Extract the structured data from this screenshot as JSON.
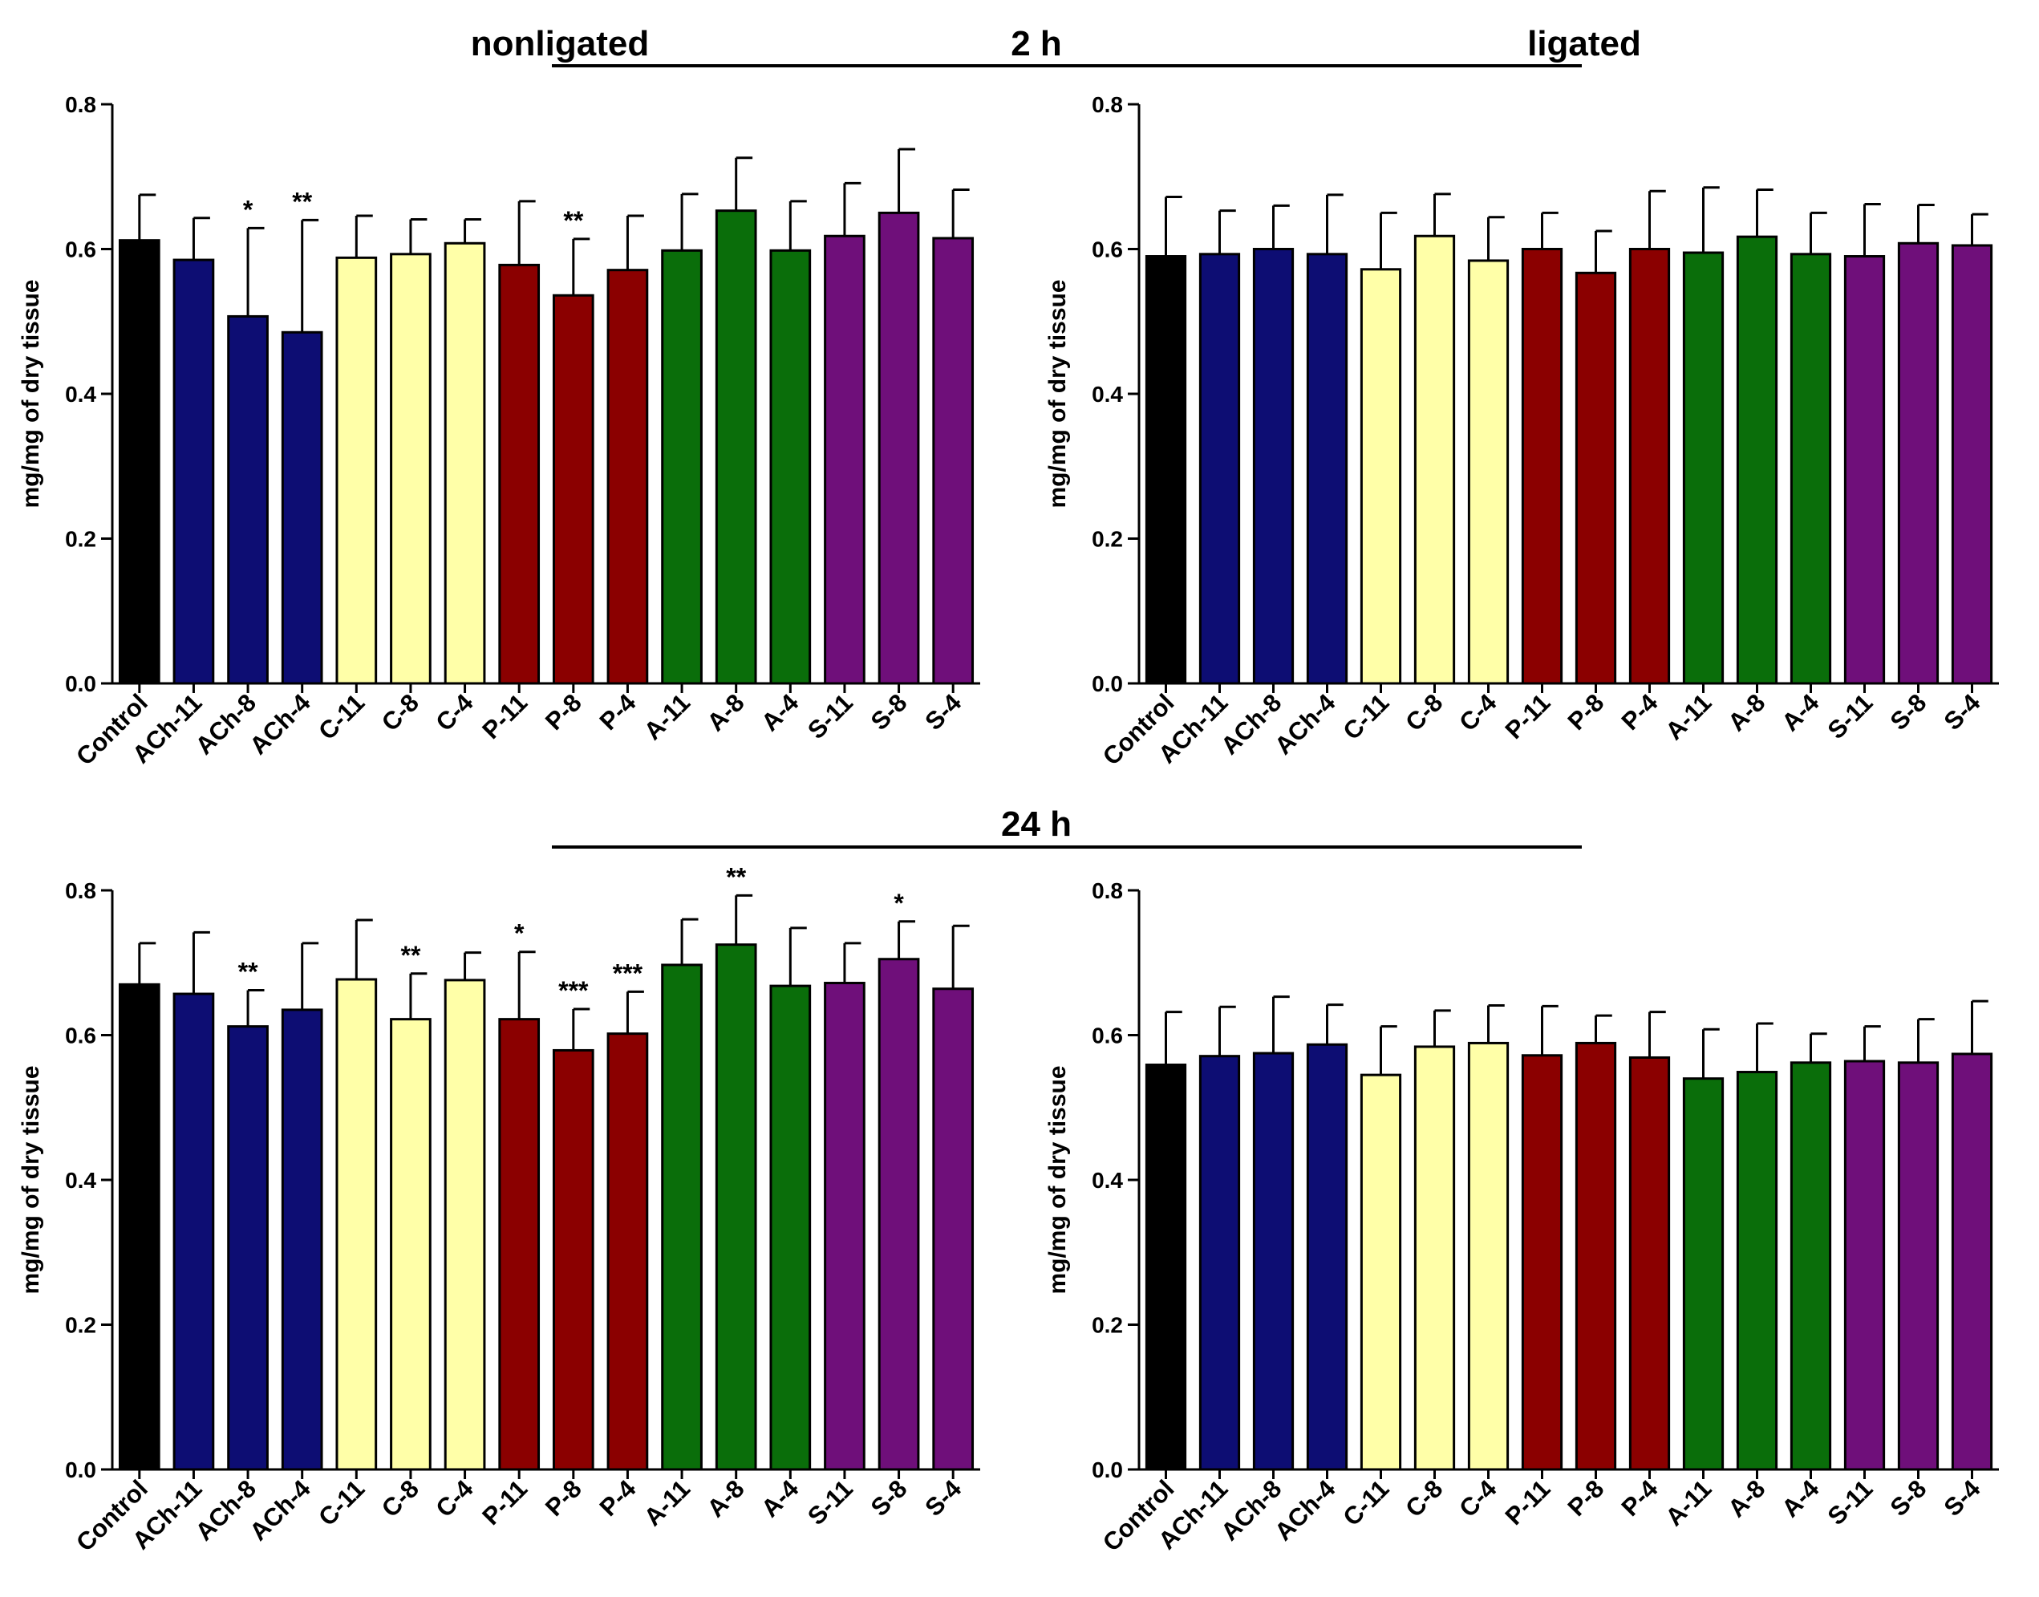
{
  "headers": {
    "top_left": "nonligated",
    "top_center": "2 h",
    "top_right": "ligated",
    "middle_center": "24 h"
  },
  "colors": {
    "control": "#000000",
    "ach": "#0d0d73",
    "c": "#ffffa8",
    "p": "#8b0000",
    "a": "#0a6e0a",
    "s": "#6f0f7a"
  },
  "chart_data": [
    {
      "type": "bar",
      "panel": "2 h nonligated",
      "ylabel": "mg/mg of dry tissue",
      "ylim": [
        0,
        0.8
      ],
      "yticks": [
        "0.0",
        "0.2",
        "0.4",
        "0.6",
        "0.8"
      ],
      "categories": [
        "Control",
        "ACh-11",
        "ACh-8",
        "ACh-4",
        "C-11",
        "C-8",
        "C-4",
        "P-11",
        "P-8",
        "P-4",
        "A-11",
        "A-8",
        "A-4",
        "S-11",
        "S-8",
        "S-4"
      ],
      "groups": [
        "control",
        "ach",
        "ach",
        "ach",
        "c",
        "c",
        "c",
        "p",
        "p",
        "p",
        "a",
        "a",
        "a",
        "s",
        "s",
        "s"
      ],
      "values": [
        0.612,
        0.585,
        0.507,
        0.485,
        0.588,
        0.593,
        0.608,
        0.578,
        0.536,
        0.571,
        0.598,
        0.653,
        0.598,
        0.618,
        0.65,
        0.615
      ],
      "errors": [
        0.063,
        0.058,
        0.122,
        0.155,
        0.058,
        0.048,
        0.033,
        0.088,
        0.078,
        0.075,
        0.078,
        0.073,
        0.068,
        0.073,
        0.088,
        0.067
      ],
      "significance": [
        "",
        "",
        "*",
        "**",
        "",
        "",
        "",
        "",
        "**",
        "",
        "",
        "",
        "",
        "",
        "",
        ""
      ]
    },
    {
      "type": "bar",
      "panel": "2 h ligated",
      "ylabel": "mg/mg of dry tissue",
      "ylim": [
        0,
        0.8
      ],
      "yticks": [
        "0.0",
        "0.2",
        "0.4",
        "0.6",
        "0.8"
      ],
      "categories": [
        "Control",
        "ACh-11",
        "ACh-8",
        "ACh-4",
        "C-11",
        "C-8",
        "C-4",
        "P-11",
        "P-8",
        "P-4",
        "A-11",
        "A-8",
        "A-4",
        "S-11",
        "S-8",
        "S-4"
      ],
      "groups": [
        "control",
        "ach",
        "ach",
        "ach",
        "c",
        "c",
        "c",
        "p",
        "p",
        "p",
        "a",
        "a",
        "a",
        "s",
        "s",
        "s"
      ],
      "values": [
        0.59,
        0.593,
        0.6,
        0.593,
        0.572,
        0.618,
        0.584,
        0.6,
        0.567,
        0.6,
        0.595,
        0.617,
        0.593,
        0.59,
        0.608,
        0.605
      ],
      "errors": [
        0.082,
        0.06,
        0.06,
        0.082,
        0.078,
        0.058,
        0.06,
        0.05,
        0.058,
        0.08,
        0.09,
        0.065,
        0.057,
        0.072,
        0.053,
        0.043
      ],
      "significance": [
        "",
        "",
        "",
        "",
        "",
        "",
        "",
        "",
        "",
        "",
        "",
        "",
        "",
        "",
        "",
        ""
      ]
    },
    {
      "type": "bar",
      "panel": "24 h nonligated",
      "ylabel": "mg/mg of dry tissue",
      "ylim": [
        0,
        0.8
      ],
      "yticks": [
        "0.0",
        "0.2",
        "0.4",
        "0.6",
        "0.8"
      ],
      "categories": [
        "Control",
        "ACh-11",
        "ACh-8",
        "ACh-4",
        "C-11",
        "C-8",
        "C-4",
        "P-11",
        "P-8",
        "P-4",
        "A-11",
        "A-8",
        "A-4",
        "S-11",
        "S-8",
        "S-4"
      ],
      "groups": [
        "control",
        "ach",
        "ach",
        "ach",
        "c",
        "c",
        "c",
        "p",
        "p",
        "p",
        "a",
        "a",
        "a",
        "s",
        "s",
        "s"
      ],
      "values": [
        0.67,
        0.657,
        0.612,
        0.635,
        0.677,
        0.622,
        0.676,
        0.622,
        0.579,
        0.602,
        0.697,
        0.725,
        0.668,
        0.672,
        0.705,
        0.664
      ],
      "errors": [
        0.057,
        0.085,
        0.05,
        0.092,
        0.082,
        0.063,
        0.038,
        0.093,
        0.057,
        0.058,
        0.063,
        0.068,
        0.08,
        0.055,
        0.052,
        0.087
      ],
      "significance": [
        "",
        "",
        "**",
        "",
        "",
        "**",
        "",
        "*",
        "***",
        "***",
        "",
        "**",
        "",
        "",
        "*",
        ""
      ]
    },
    {
      "type": "bar",
      "panel": "24 h ligated",
      "ylabel": "mg/mg of dry tissue",
      "ylim": [
        0,
        0.8
      ],
      "yticks": [
        "0.0",
        "0.2",
        "0.4",
        "0.6",
        "0.8"
      ],
      "categories": [
        "Control",
        "ACh-11",
        "ACh-8",
        "ACh-4",
        "C-11",
        "C-8",
        "C-4",
        "P-11",
        "P-8",
        "P-4",
        "A-11",
        "A-8",
        "A-4",
        "S-11",
        "S-8",
        "S-4"
      ],
      "groups": [
        "control",
        "ach",
        "ach",
        "ach",
        "c",
        "c",
        "c",
        "p",
        "p",
        "p",
        "a",
        "a",
        "a",
        "s",
        "s",
        "s"
      ],
      "values": [
        0.559,
        0.571,
        0.575,
        0.587,
        0.545,
        0.584,
        0.589,
        0.572,
        0.589,
        0.569,
        0.54,
        0.549,
        0.562,
        0.564,
        0.562,
        0.574
      ],
      "errors": [
        0.073,
        0.068,
        0.078,
        0.055,
        0.067,
        0.05,
        0.052,
        0.068,
        0.038,
        0.063,
        0.068,
        0.067,
        0.04,
        0.048,
        0.06,
        0.073
      ],
      "significance": [
        "",
        "",
        "",
        "",
        "",
        "",
        "",
        "",
        "",
        "",
        "",
        "",
        "",
        "",
        "",
        ""
      ]
    }
  ]
}
